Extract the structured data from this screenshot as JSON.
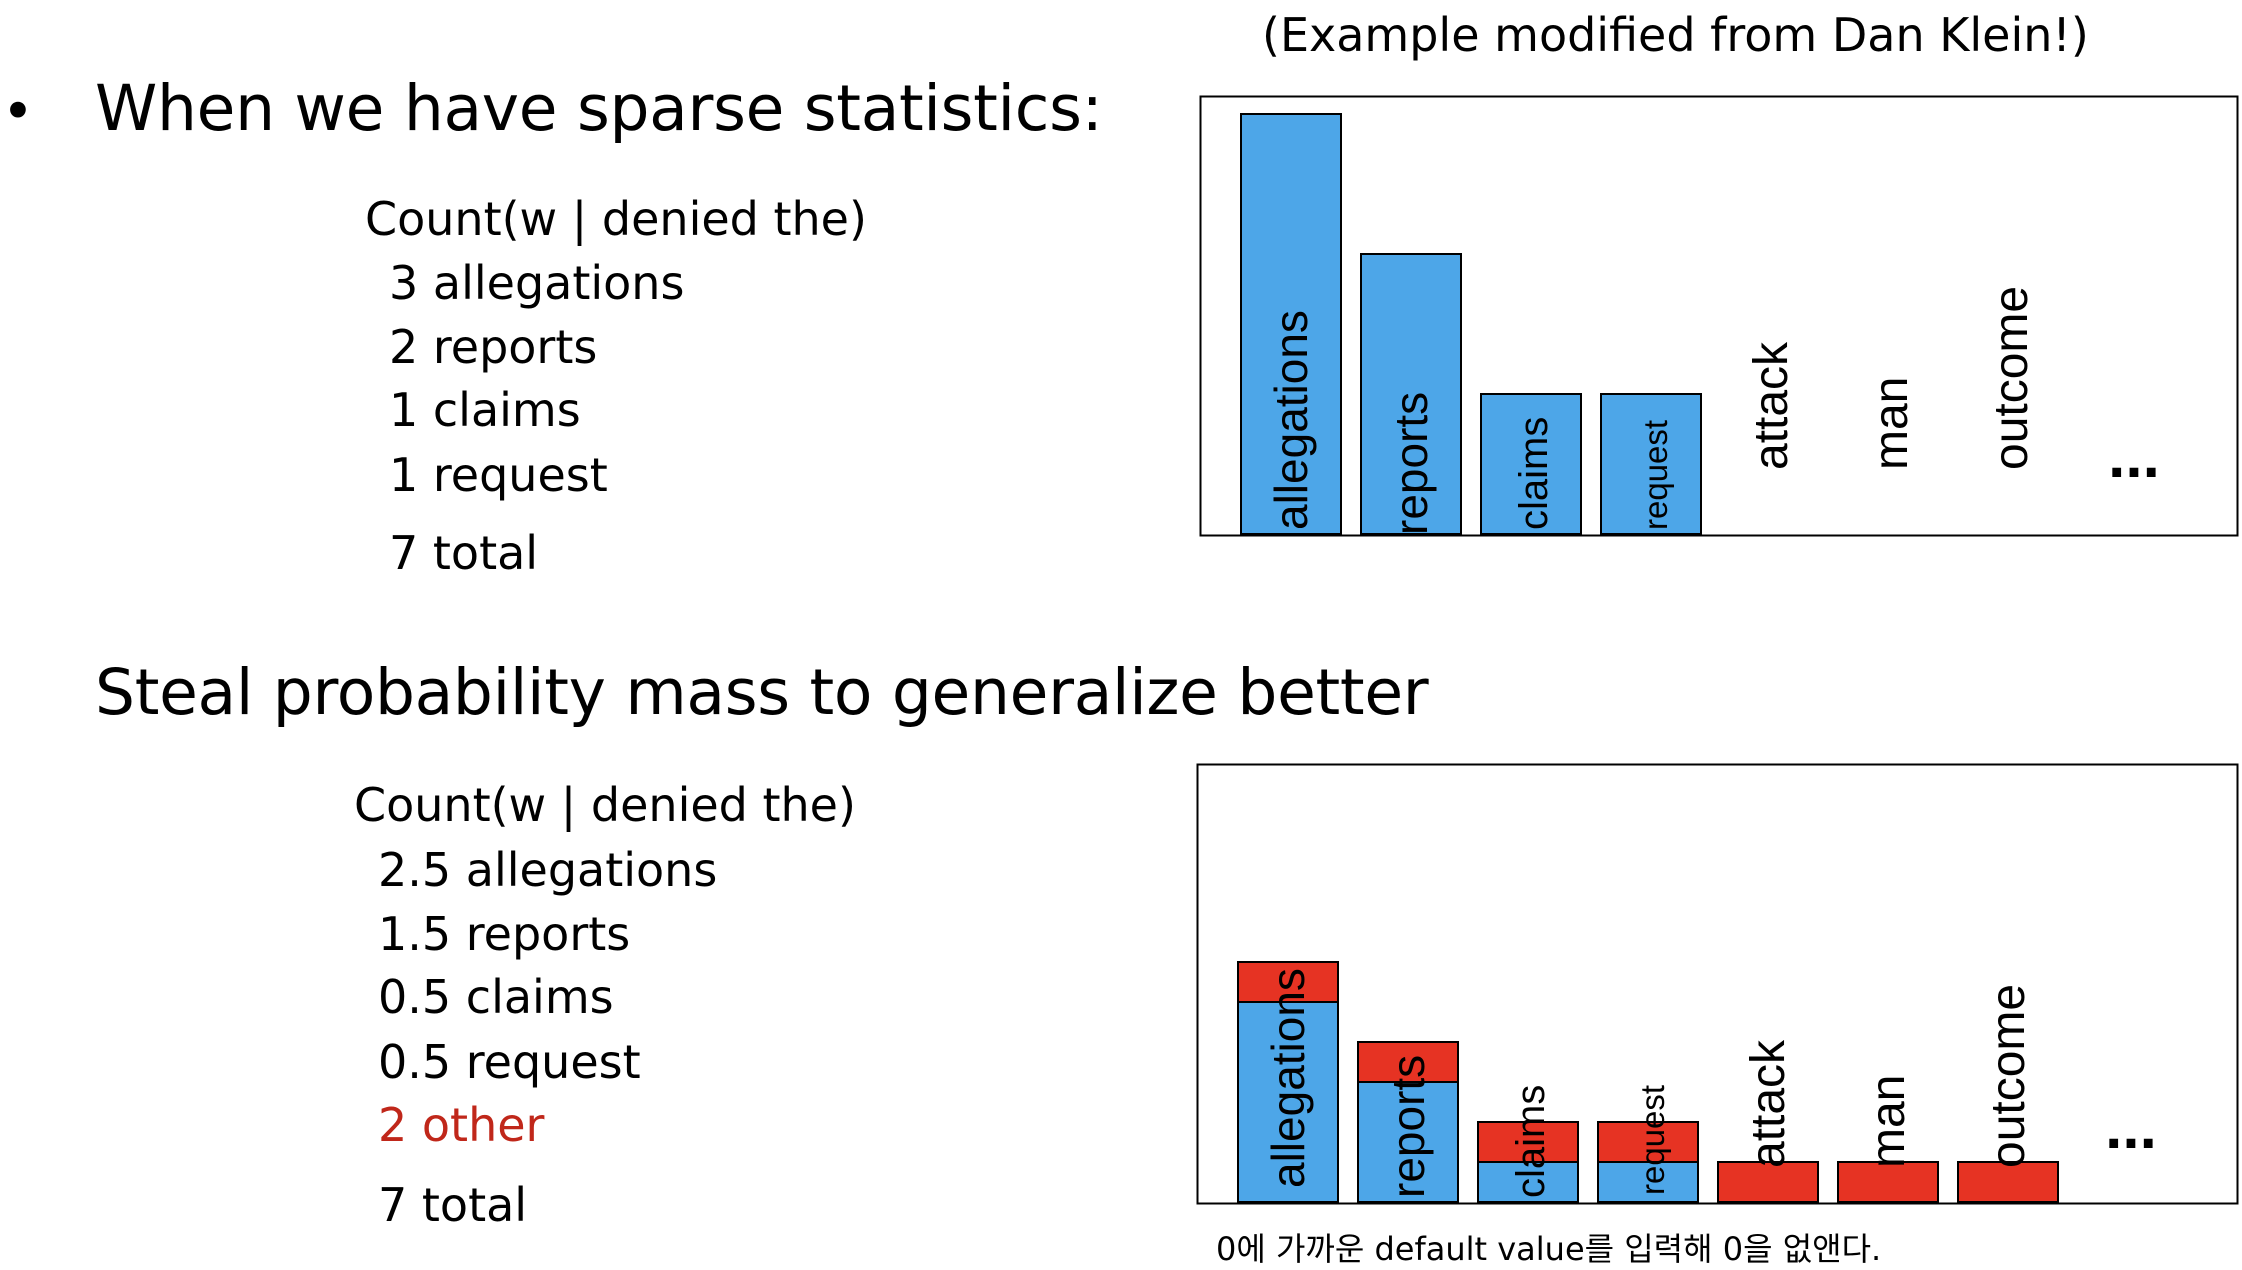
{
  "slide": {
    "bullet_glyph": "•",
    "heading_top": "When we have sparse statistics:",
    "heading_bottom": "Steal probability mass to generalize better",
    "credit_note": "(Example modified from Dan Klein!)",
    "caption": "0에 가까운 default value를 입력해 0을 없앤다."
  },
  "top_counts": {
    "header": "Count(w | denied the)",
    "lines": [
      "3 allegations",
      "2 reports",
      "1 claims",
      "1 request"
    ],
    "total": "7 total"
  },
  "bottom_counts": {
    "header": "Count(w | denied the)",
    "lines": [
      "2.5 allegations",
      "1.5 reports",
      "0.5 claims",
      "0.5 request"
    ],
    "other": "2 other",
    "total": "7 total"
  },
  "colors": {
    "blue": "#4da6e8",
    "red": "#e63323",
    "red_text": "#c0271a"
  },
  "chart_data": [
    {
      "type": "bar",
      "categories": [
        "allegations",
        "reports",
        "claims",
        "request",
        "attack",
        "man",
        "outcome"
      ],
      "values": [
        3,
        2,
        1,
        1,
        0,
        0,
        0
      ],
      "ellipsis": "..."
    },
    {
      "type": "bar",
      "categories": [
        "allegations",
        "reports",
        "claims",
        "request",
        "attack",
        "man",
        "outcome"
      ],
      "series": [
        {
          "values": [
            2.5,
            1.5,
            0.5,
            0.5,
            0,
            0,
            0
          ]
        },
        {
          "values": [
            0.5,
            0.5,
            0.5,
            0.5,
            0.5,
            0.5,
            0.5
          ]
        }
      ],
      "ellipsis": "..."
    }
  ]
}
